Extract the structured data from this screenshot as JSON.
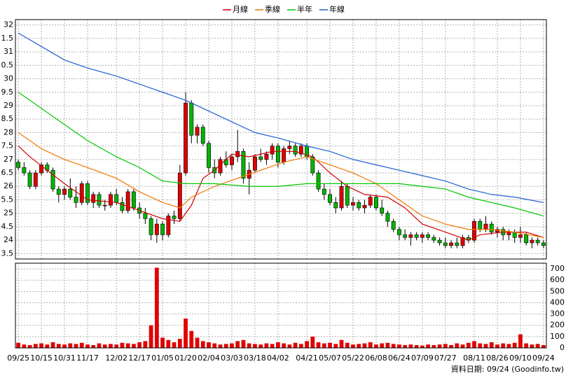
{
  "chart_data": {
    "type": "candlestick",
    "legend_position": "top",
    "grid": true,
    "up_color": "#e00000",
    "down_color": "#00b400",
    "volume_color": "#e00000",
    "series": [
      {
        "name": "月線",
        "color": "#d40000",
        "x": [
          0,
          2,
          5,
          8,
          12,
          17,
          21,
          25,
          28,
          30,
          32,
          34,
          37,
          40,
          44,
          48,
          51,
          54,
          57,
          60,
          64,
          67,
          70,
          74,
          78,
          80,
          84,
          88,
          91
        ],
        "values": [
          27.5,
          27.1,
          26.6,
          26.1,
          25.5,
          25.4,
          25.1,
          24.8,
          24.7,
          25.3,
          26.3,
          26.6,
          27.2,
          27.1,
          27.3,
          27.3,
          27.1,
          26.5,
          26.0,
          25.7,
          25.6,
          25.2,
          24.6,
          24.3,
          24.0,
          24.2,
          24.3,
          24.3,
          24.1
        ]
      },
      {
        "name": "季線",
        "color": "#f07800",
        "x": [
          0,
          4,
          8,
          12,
          17,
          21,
          25,
          28,
          30,
          34,
          38,
          42,
          46,
          50,
          54,
          58,
          62,
          66,
          70,
          74,
          78,
          82,
          86,
          91
        ],
        "values": [
          28.0,
          27.4,
          27.0,
          26.7,
          26.3,
          25.8,
          25.4,
          25.2,
          25.6,
          26.0,
          26.3,
          26.6,
          26.9,
          27.1,
          26.8,
          26.5,
          26.1,
          25.5,
          24.9,
          24.6,
          24.4,
          24.4,
          24.3,
          24.1
        ]
      },
      {
        "name": "半年",
        "color": "#00c800",
        "x": [
          0,
          4,
          8,
          12,
          17,
          21,
          25,
          29,
          34,
          40,
          45,
          50,
          54,
          58,
          62,
          66,
          70,
          74,
          78,
          82,
          86,
          91
        ],
        "values": [
          29.5,
          28.9,
          28.3,
          27.7,
          27.1,
          26.7,
          26.2,
          26.1,
          26.1,
          26.0,
          26.0,
          26.1,
          26.1,
          26.1,
          26.1,
          26.1,
          26.0,
          25.9,
          25.6,
          25.4,
          25.2,
          24.9
        ]
      },
      {
        "name": "年線",
        "color": "#2060d0",
        "x": [
          0,
          4,
          8,
          12,
          17,
          21,
          25,
          29,
          33,
          37,
          41,
          45,
          50,
          54,
          58,
          62,
          66,
          70,
          74,
          78,
          82,
          86,
          91
        ],
        "values": [
          31.7,
          31.2,
          30.7,
          30.4,
          30.1,
          29.8,
          29.5,
          29.2,
          28.8,
          28.4,
          28.0,
          27.8,
          27.5,
          27.3,
          27.0,
          26.8,
          26.6,
          26.4,
          26.2,
          25.9,
          25.7,
          25.6,
          25.4
        ]
      }
    ],
    "open": [
      26.9,
      26.7,
      26.5,
      26.0,
      26.5,
      26.8,
      26.6,
      25.9,
      25.7,
      25.9,
      25.6,
      25.4,
      26.1,
      25.4,
      25.7,
      25.3,
      25.3,
      25.7,
      25.4,
      25.1,
      25.8,
      25.2,
      25.0,
      24.8,
      24.2,
      24.6,
      24.2,
      24.9,
      24.8,
      26.5,
      29.1,
      27.9,
      28.2,
      27.6,
      26.7,
      26.5,
      27.0,
      26.8,
      27.1,
      27.3,
      26.3,
      26.6,
      27.1,
      27.0,
      27.2,
      27.5,
      26.9,
      27.4,
      27.5,
      27.2,
      27.5,
      27.1,
      26.5,
      25.9,
      25.7,
      25.4,
      25.2,
      26.0,
      25.3,
      25.4,
      25.2,
      25.3,
      25.6,
      25.2,
      25.0,
      24.7,
      24.4,
      24.2,
      24.1,
      24.2,
      24.1,
      24.2,
      24.1,
      24.0,
      23.9,
      23.8,
      23.9,
      23.8,
      24.1,
      24.0,
      24.7,
      24.4,
      24.6,
      24.3,
      24.4,
      24.2,
      24.3,
      24.1,
      24.2,
      23.9,
      24.0,
      23.9
    ],
    "high": [
      27.0,
      26.9,
      26.6,
      26.6,
      26.9,
      26.9,
      26.7,
      26.0,
      26.0,
      26.3,
      26.0,
      26.2,
      26.2,
      25.8,
      25.8,
      25.5,
      25.8,
      25.9,
      25.6,
      25.9,
      25.9,
      25.4,
      25.2,
      24.9,
      24.8,
      24.7,
      25.0,
      25.1,
      26.8,
      29.5,
      29.2,
      28.3,
      28.3,
      27.7,
      27.0,
      27.1,
      27.3,
      27.2,
      28.1,
      27.4,
      26.9,
      27.2,
      27.4,
      27.3,
      27.6,
      27.6,
      27.5,
      27.7,
      27.6,
      27.6,
      27.6,
      27.2,
      26.6,
      26.1,
      25.9,
      25.6,
      26.2,
      26.1,
      25.6,
      25.5,
      25.5,
      25.7,
      25.7,
      25.5,
      25.1,
      24.8,
      24.5,
      24.4,
      24.3,
      24.3,
      24.3,
      24.3,
      24.2,
      24.1,
      24.1,
      24.0,
      24.1,
      24.2,
      24.2,
      24.8,
      24.8,
      24.9,
      24.7,
      24.5,
      24.5,
      24.4,
      24.4,
      24.5,
      24.3,
      24.1,
      24.1,
      24.0
    ],
    "low": [
      26.6,
      26.4,
      25.9,
      25.9,
      26.4,
      26.5,
      25.8,
      25.4,
      25.5,
      25.5,
      25.2,
      25.3,
      25.3,
      25.2,
      25.2,
      25.1,
      25.2,
      25.3,
      25.0,
      25.0,
      25.1,
      24.8,
      24.6,
      24.0,
      23.9,
      24.0,
      24.1,
      24.6,
      24.7,
      26.4,
      27.6,
      27.6,
      27.5,
      26.5,
      26.3,
      26.4,
      26.7,
      26.6,
      26.9,
      26.1,
      25.7,
      26.5,
      26.9,
      26.8,
      27.0,
      26.7,
      26.8,
      27.2,
      27.1,
      27.1,
      27.0,
      26.4,
      25.8,
      25.5,
      25.3,
      25.0,
      25.1,
      25.2,
      25.1,
      25.1,
      25.0,
      25.2,
      25.1,
      24.9,
      24.5,
      24.3,
      24.0,
      24.0,
      23.8,
      24.0,
      23.9,
      24.0,
      23.9,
      23.8,
      23.7,
      23.7,
      23.7,
      23.7,
      23.9,
      23.9,
      24.3,
      24.3,
      24.2,
      24.1,
      24.0,
      24.0,
      23.9,
      23.9,
      23.8,
      23.7,
      23.8,
      23.7
    ],
    "close": [
      26.7,
      26.5,
      26.0,
      26.5,
      26.8,
      26.6,
      25.9,
      25.7,
      25.9,
      25.6,
      25.4,
      26.1,
      25.4,
      25.7,
      25.3,
      25.3,
      25.7,
      25.4,
      25.1,
      25.8,
      25.2,
      25.0,
      24.8,
      24.2,
      24.6,
      24.2,
      24.9,
      24.8,
      26.5,
      29.1,
      27.9,
      28.2,
      27.6,
      26.7,
      26.5,
      27.0,
      26.8,
      27.1,
      27.3,
      26.3,
      26.6,
      27.1,
      27.0,
      27.2,
      27.5,
      26.9,
      27.4,
      27.5,
      27.2,
      27.5,
      27.1,
      26.5,
      25.9,
      25.7,
      25.4,
      25.2,
      26.0,
      25.3,
      25.4,
      25.2,
      25.3,
      25.6,
      25.2,
      25.0,
      24.7,
      24.4,
      24.2,
      24.1,
      24.2,
      24.1,
      24.2,
      24.1,
      24.0,
      23.9,
      23.8,
      23.9,
      23.8,
      24.1,
      24.0,
      24.7,
      24.4,
      24.6,
      24.3,
      24.4,
      24.2,
      24.3,
      24.1,
      24.2,
      23.9,
      24.0,
      23.9,
      23.8
    ],
    "volume": [
      45,
      30,
      25,
      35,
      40,
      30,
      50,
      35,
      30,
      40,
      35,
      45,
      30,
      25,
      40,
      30,
      35,
      30,
      45,
      40,
      35,
      50,
      60,
      200,
      710,
      90,
      70,
      50,
      80,
      260,
      150,
      90,
      60,
      50,
      40,
      30,
      35,
      40,
      60,
      70,
      40,
      35,
      30,
      40,
      35,
      50,
      40,
      30,
      45,
      35,
      60,
      100,
      50,
      40,
      45,
      35,
      70,
      45,
      30,
      35,
      40,
      50,
      30,
      40,
      45,
      35,
      30,
      25,
      30,
      25,
      20,
      30,
      25,
      30,
      35,
      25,
      40,
      30,
      45,
      60,
      40,
      35,
      50,
      30,
      40,
      35,
      45,
      120,
      40,
      30,
      35,
      25
    ],
    "xlim": [
      -0.5,
      91.5
    ],
    "xticks": [
      {
        "value": 0,
        "label": "09/25"
      },
      {
        "value": 4,
        "label": "10/15"
      },
      {
        "value": 8,
        "label": "10/31"
      },
      {
        "value": 12,
        "label": "11/17"
      },
      {
        "value": 17,
        "label": "12/02"
      },
      {
        "value": 21,
        "label": "12/17"
      },
      {
        "value": 25,
        "label": "01/05"
      },
      {
        "value": 29,
        "label": "01/20"
      },
      {
        "value": 33,
        "label": "02/04"
      },
      {
        "value": 37,
        "label": "03/03"
      },
      {
        "value": 41,
        "label": "03/18"
      },
      {
        "value": 45,
        "label": "04/02"
      },
      {
        "value": 50,
        "label": "04/21"
      },
      {
        "value": 54,
        "label": "05/07"
      },
      {
        "value": 58,
        "label": "05/22"
      },
      {
        "value": 62,
        "label": "06/08"
      },
      {
        "value": 66,
        "label": "06/24"
      },
      {
        "value": 70,
        "label": "07/09"
      },
      {
        "value": 74,
        "label": "07/27"
      },
      {
        "value": 79,
        "label": "08/11"
      },
      {
        "value": 83,
        "label": "08/26"
      },
      {
        "value": 87,
        "label": "09/10"
      },
      {
        "value": 91,
        "label": "09/24"
      }
    ],
    "ylim": [
      23.3,
      32.2
    ],
    "yticks": [
      32,
      {
        "value": 31.5,
        "label": "1.5"
      },
      31,
      {
        "value": 30.5,
        "label": "0.5"
      },
      30,
      {
        "value": 29.5,
        "label": "9.5"
      },
      29,
      {
        "value": 28.5,
        "label": "8.5"
      },
      28,
      {
        "value": 27.5,
        "label": "7.5"
      },
      27,
      {
        "value": 26.5,
        "label": "6.5"
      },
      26,
      {
        "value": 25.5,
        "label": "5.5"
      },
      25,
      {
        "value": 24.5,
        "label": "4.5"
      },
      24,
      {
        "value": 23.5,
        "label": "3.5"
      }
    ],
    "y2lim": [
      0,
      750
    ],
    "y2ticks": [
      0,
      100,
      200,
      300,
      400,
      500,
      600,
      700
    ],
    "source_note": "資料日期: 09/24 (Goodinfo.tw)"
  }
}
